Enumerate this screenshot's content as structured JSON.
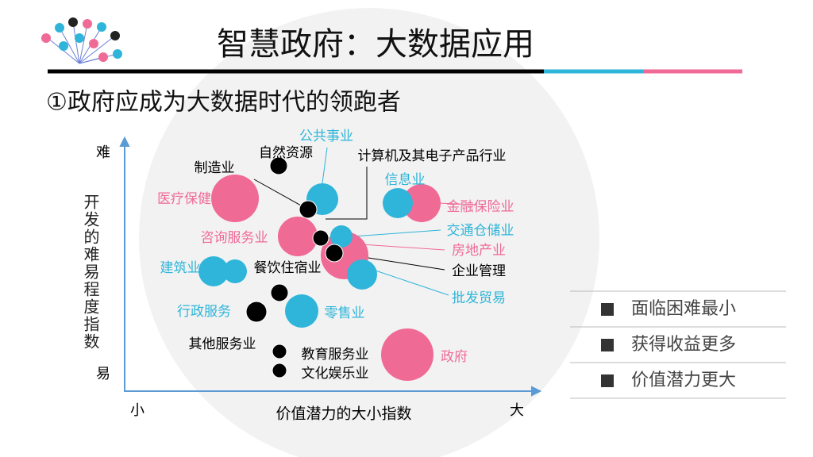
{
  "header": {
    "title": "智慧政府：大数据应用",
    "subtitle": "①政府应成为大数据时代的领跑者"
  },
  "axes": {
    "y_top": "难",
    "y_bottom": "易",
    "x_left": "小",
    "x_right": "大",
    "x_title": "价值潜力的大小指数",
    "y_title": "开发的难易程度指数"
  },
  "labels": [
    "公共事业",
    "自然资源",
    "计算机及其电子产品行业",
    "制造业",
    "信息业",
    "医疗保健",
    "金融保险业",
    "咨询服务业",
    "交通仓储业",
    "房地产业",
    "建筑业",
    "餐饮住宿业",
    "企业管理",
    "批发贸易",
    "行政服务",
    "零售业",
    "其他服务业",
    "教育服务业",
    "文化娱乐业",
    "政府"
  ],
  "bullets": [
    "面临困难最小",
    "获得收益更多",
    "价值潜力更大"
  ]
}
